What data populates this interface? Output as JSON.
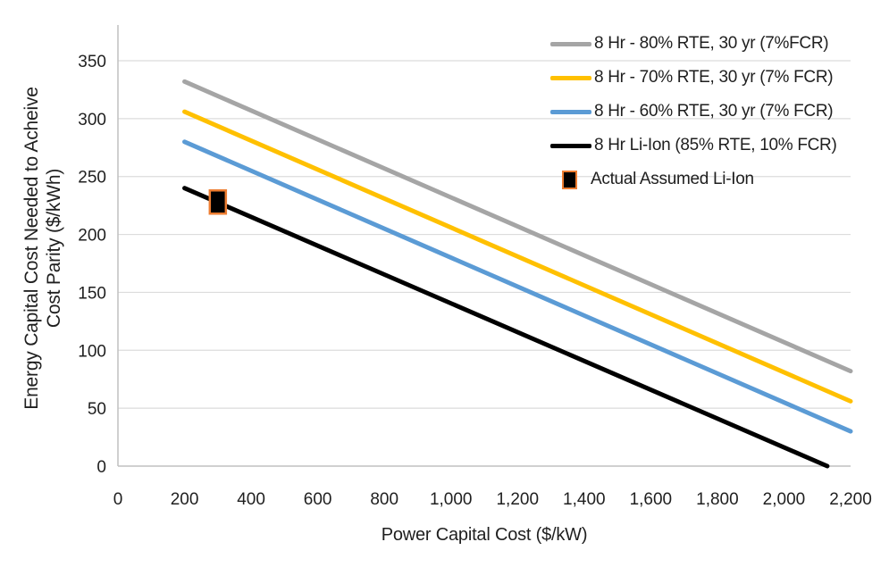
{
  "chart_data": {
    "type": "line",
    "title": "",
    "xlabel": "Power Capital Cost ($/kW)",
    "ylabel": "Energy Capital Cost Needed to Acheive Cost Parity ($/kWh)",
    "ylabel_lines": [
      "Energy Capital Cost Needed to Acheive",
      "Cost Parity ($/kWh)"
    ],
    "xlim": [
      0,
      2200
    ],
    "ylim": [
      0,
      350
    ],
    "x_tick_values": [
      0,
      200,
      400,
      600,
      800,
      1000,
      1200,
      1400,
      1600,
      1800,
      2000,
      2200
    ],
    "x_tick_labels": [
      "0",
      "200",
      "400",
      "600",
      "800",
      "1,000",
      "1,200",
      "1,400",
      "1,600",
      "1,800",
      "2,000",
      "2,200"
    ],
    "y_tick_values": [
      0,
      50,
      100,
      150,
      200,
      250,
      300,
      350
    ],
    "y_tick_labels": [
      "0",
      "50",
      "100",
      "150",
      "200",
      "250",
      "300",
      "350"
    ],
    "grid": "horizontal",
    "legend_position": "top-right",
    "series": [
      {
        "name": "8 Hr - 80% RTE, 30 yr (7%FCR)",
        "color": "#a5a5a5",
        "points": [
          [
            200,
            332
          ],
          [
            2200,
            82
          ]
        ]
      },
      {
        "name": "8 Hr - 70% RTE, 30 yr (7% FCR)",
        "color": "#ffc000",
        "points": [
          [
            200,
            306
          ],
          [
            2200,
            56
          ]
        ]
      },
      {
        "name": "8 Hr - 60% RTE, 30 yr (7% FCR)",
        "color": "#5b9bd5",
        "points": [
          [
            200,
            280
          ],
          [
            2200,
            30
          ]
        ]
      },
      {
        "name": "8 Hr Li-Ion (85% RTE, 10% FCR)",
        "color": "#000000",
        "points": [
          [
            200,
            240
          ],
          [
            2130,
            0
          ]
        ]
      }
    ],
    "point_series": {
      "name": "Actual Assumed Li-Ion",
      "fill": "#000000",
      "border": "#ed7d31",
      "point": [
        300,
        228
      ]
    }
  },
  "colors": {
    "background": "#ffffff",
    "gridline": "#dcdcdc",
    "axis": "#c0c0c0",
    "text": "#1f1f1f"
  }
}
